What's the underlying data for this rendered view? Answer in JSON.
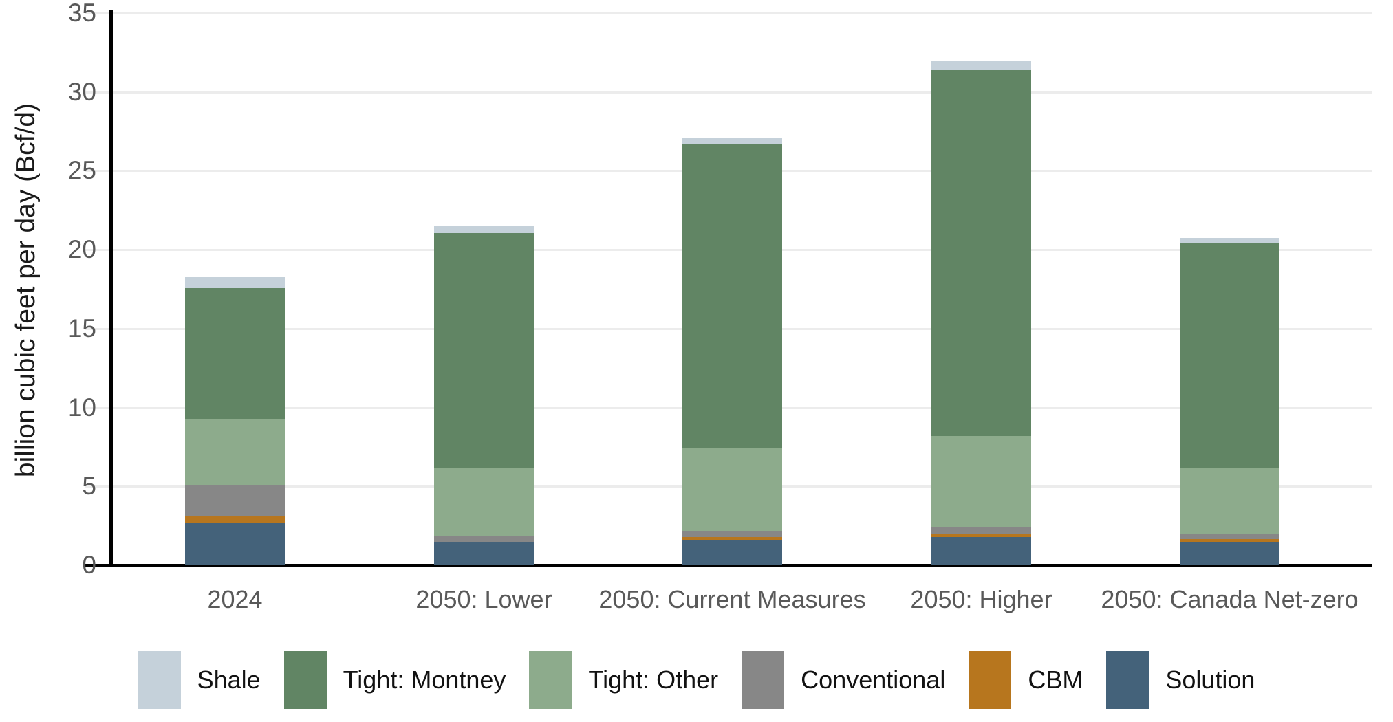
{
  "chart_data": {
    "type": "bar",
    "stacked": true,
    "title": "",
    "ylabel": "billion cubic feet per day (Bcf/d)",
    "xlabel": "",
    "ylim": [
      0,
      35
    ],
    "yticks": [
      0,
      5,
      10,
      15,
      20,
      25,
      30,
      35
    ],
    "grid": "horizontal",
    "legend_position": "bottom",
    "categories": [
      "2024",
      "2050: Lower",
      "2050: Current Measures",
      "2050: Higher",
      "2050: Canada Net-zero"
    ],
    "series_stack_order_note": "series listed bottom-to-top of the stack",
    "series": [
      {
        "name": "Solution",
        "color": "#44627a",
        "values": [
          2.7,
          1.5,
          1.6,
          1.8,
          1.5
        ]
      },
      {
        "name": "CBM",
        "color": "#b7761e",
        "values": [
          0.45,
          0.0,
          0.2,
          0.2,
          0.15
        ]
      },
      {
        "name": "Conventional",
        "color": "#878787",
        "values": [
          1.9,
          0.35,
          0.4,
          0.4,
          0.35
        ]
      },
      {
        "name": "Tight: Other",
        "color": "#8dab8c",
        "values": [
          4.2,
          4.3,
          5.2,
          5.8,
          4.2
        ]
      },
      {
        "name": "Tight: Montney",
        "color": "#618564",
        "values": [
          8.3,
          14.9,
          19.3,
          23.2,
          14.25
        ]
      },
      {
        "name": "Shale",
        "color": "#c5d1da",
        "values": [
          0.7,
          0.5,
          0.35,
          0.6,
          0.3
        ]
      }
    ],
    "totals": [
      18.25,
      21.55,
      27.05,
      32.0,
      20.75
    ],
    "legend": [
      {
        "label": "Shale",
        "color": "#c5d1da"
      },
      {
        "label": "Tight: Montney",
        "color": "#618564"
      },
      {
        "label": "Tight: Other",
        "color": "#8dab8c"
      },
      {
        "label": "Conventional",
        "color": "#878787"
      },
      {
        "label": "CBM",
        "color": "#b7761e"
      },
      {
        "label": "Solution",
        "color": "#44627a"
      }
    ]
  }
}
